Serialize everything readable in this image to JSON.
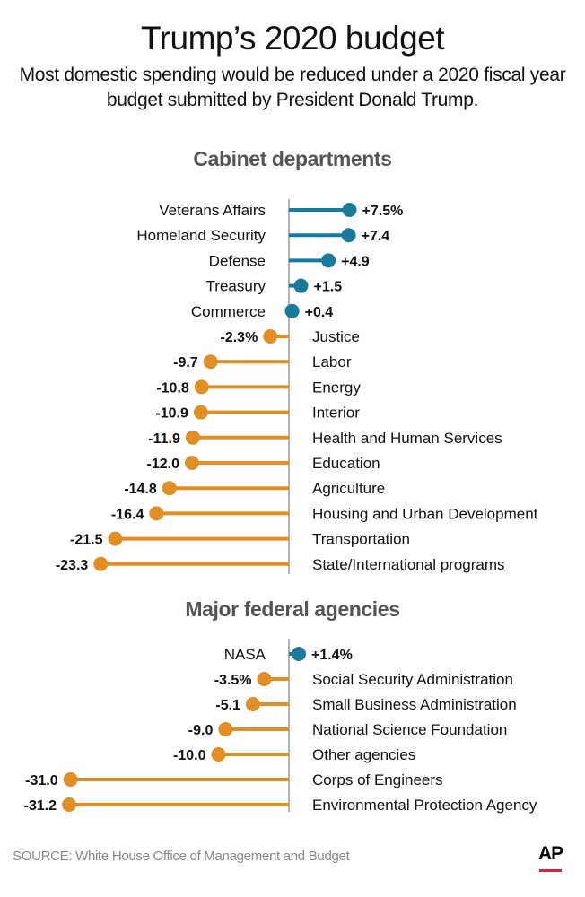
{
  "title": "Trump’s 2020 budget",
  "subtitle": "Most domestic spending would be reduced under a 2020 fiscal year budget submitted by President Donald Trump.",
  "source": "SOURCE: White House Office of Management and Budget",
  "logo": "AP",
  "colors": {
    "positive": "#1a7a9c",
    "negative": "#e08e25",
    "axis": "#999999",
    "logo_bar": "#d6223b"
  },
  "chart_data": [
    {
      "type": "lollipop",
      "title": "Cabinet departments",
      "unit": "%",
      "categories": [
        "Veterans Affairs",
        "Homeland Security",
        "Defense",
        "Treasury",
        "Commerce",
        "Justice",
        "Labor",
        "Energy",
        "Interior",
        "Health and Human Services",
        "Education",
        "Agriculture",
        "Housing and Urban Development",
        "Transportation",
        "State/International programs"
      ],
      "values": [
        7.5,
        7.4,
        4.9,
        1.5,
        0.4,
        -2.3,
        -9.7,
        -10.8,
        -10.9,
        -11.9,
        -12.0,
        -14.8,
        -16.4,
        -21.5,
        -23.3
      ],
      "value_labels": [
        "+7.5%",
        "+7.4",
        "+4.9",
        "+1.5",
        "+0.4",
        "-2.3%",
        "-9.7",
        "-10.8",
        "-10.9",
        "-11.9",
        "-12.0",
        "-14.8",
        "-16.4",
        "-21.5",
        "-23.3"
      ]
    },
    {
      "type": "lollipop",
      "title": "Major federal agencies",
      "unit": "%",
      "categories": [
        "NASA",
        "Social Security Administration",
        "Small Business Administration",
        "National Science Foundation",
        "Other agencies",
        "Corps of Engineers",
        "Environmental Protection Agency"
      ],
      "values": [
        1.4,
        -3.5,
        -5.1,
        -9.0,
        -10.0,
        -31.0,
        -31.2
      ],
      "value_labels": [
        "+1.4%",
        "-3.5%",
        "-5.1",
        "-9.0",
        "-10.0",
        "-31.0",
        "-31.2"
      ]
    }
  ]
}
